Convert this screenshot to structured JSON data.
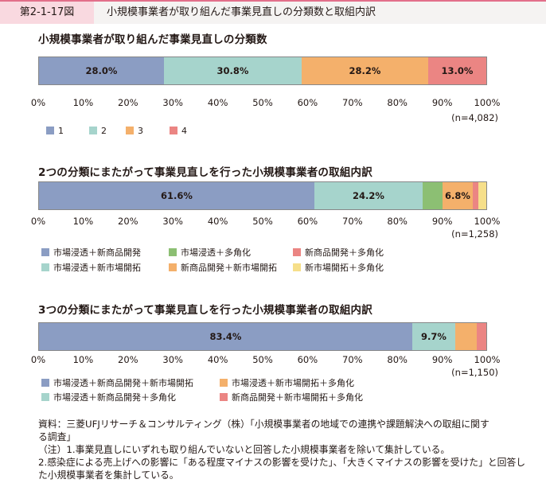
{
  "header": {
    "figure_number": "第2-1-17図",
    "title": "小規模事業者が取り組んだ事業見直しの分類数と取組内訳"
  },
  "colors": {
    "blue": "#8b9dc3",
    "teal": "#a6d4cc",
    "orange": "#f4b06b",
    "red": "#eb8583",
    "green": "#8cbf73",
    "yellow": "#f6df8a"
  },
  "axis_ticks": [
    "0%",
    "10%",
    "20%",
    "30%",
    "40%",
    "50%",
    "60%",
    "70%",
    "80%",
    "90%",
    "100%"
  ],
  "chart_data": [
    {
      "type": "bar",
      "orientation": "horizontal-stacked-100",
      "title": "小規模事業者が取り組んだ事業見直しの分類数",
      "n_label": "(n=4,082)",
      "xlim": [
        0,
        100
      ],
      "series": [
        {
          "name": "1",
          "value": 28.0,
          "label": "28.0%",
          "color": "#8b9dc3"
        },
        {
          "name": "2",
          "value": 30.8,
          "label": "30.8%",
          "color": "#a6d4cc"
        },
        {
          "name": "3",
          "value": 28.2,
          "label": "28.2%",
          "color": "#f4b06b"
        },
        {
          "name": "4",
          "value": 13.0,
          "label": "13.0%",
          "color": "#eb8583"
        }
      ]
    },
    {
      "type": "bar",
      "orientation": "horizontal-stacked-100",
      "title": "2つの分類にまたがって事業見直しを行った小規模事業者の取組内訳",
      "n_label": "(n=1,258)",
      "xlim": [
        0,
        100
      ],
      "series": [
        {
          "name": "市場浸透＋新商品開発",
          "value": 61.6,
          "label": "61.6%",
          "color": "#8b9dc3"
        },
        {
          "name": "市場浸透＋新市場開拓",
          "value": 24.2,
          "label": "24.2%",
          "color": "#a6d4cc"
        },
        {
          "name": "市場浸透＋多角化",
          "value": 4.4,
          "label": "",
          "color": "#8cbf73"
        },
        {
          "name": "新商品開発＋新市場開拓",
          "value": 6.8,
          "label": "6.8%",
          "color": "#f4b06b"
        },
        {
          "name": "新商品開発＋多角化",
          "value": 1.3,
          "label": "",
          "color": "#eb8583"
        },
        {
          "name": "新市場開拓＋多角化",
          "value": 1.7,
          "label": "",
          "color": "#f6df8a"
        }
      ]
    },
    {
      "type": "bar",
      "orientation": "horizontal-stacked-100",
      "title": "3つの分類にまたがって事業見直しを行った小規模事業者の取組内訳",
      "n_label": "(n=1,150)",
      "xlim": [
        0,
        100
      ],
      "series": [
        {
          "name": "市場浸透＋新商品開発＋新市場開拓",
          "value": 83.4,
          "label": "83.4%",
          "color": "#8b9dc3"
        },
        {
          "name": "市場浸透＋新商品開発＋多角化",
          "value": 9.7,
          "label": "9.7%",
          "color": "#a6d4cc"
        },
        {
          "name": "市場浸透＋新市場開拓＋多角化",
          "value": 4.7,
          "label": "",
          "color": "#f4b06b"
        },
        {
          "name": "新商品開発＋新市場開拓＋多角化",
          "value": 2.2,
          "label": "",
          "color": "#eb8583"
        }
      ]
    }
  ],
  "notes": [
    "資料：三菱UFJリサーチ＆コンサルティング（株）「小規模事業者の地域での連携や課題解決への取組に関す",
    "る調査」",
    "（注）1.事業見直しにいずれも取り組んでいないと回答した小規模事業者を除いて集計している。",
    "2.感染症による売上げへの影響に「ある程度マイナスの影響を受けた」、「大きくマイナスの影響を受けた」と回答し",
    "た小規模事業者を集計している。"
  ]
}
